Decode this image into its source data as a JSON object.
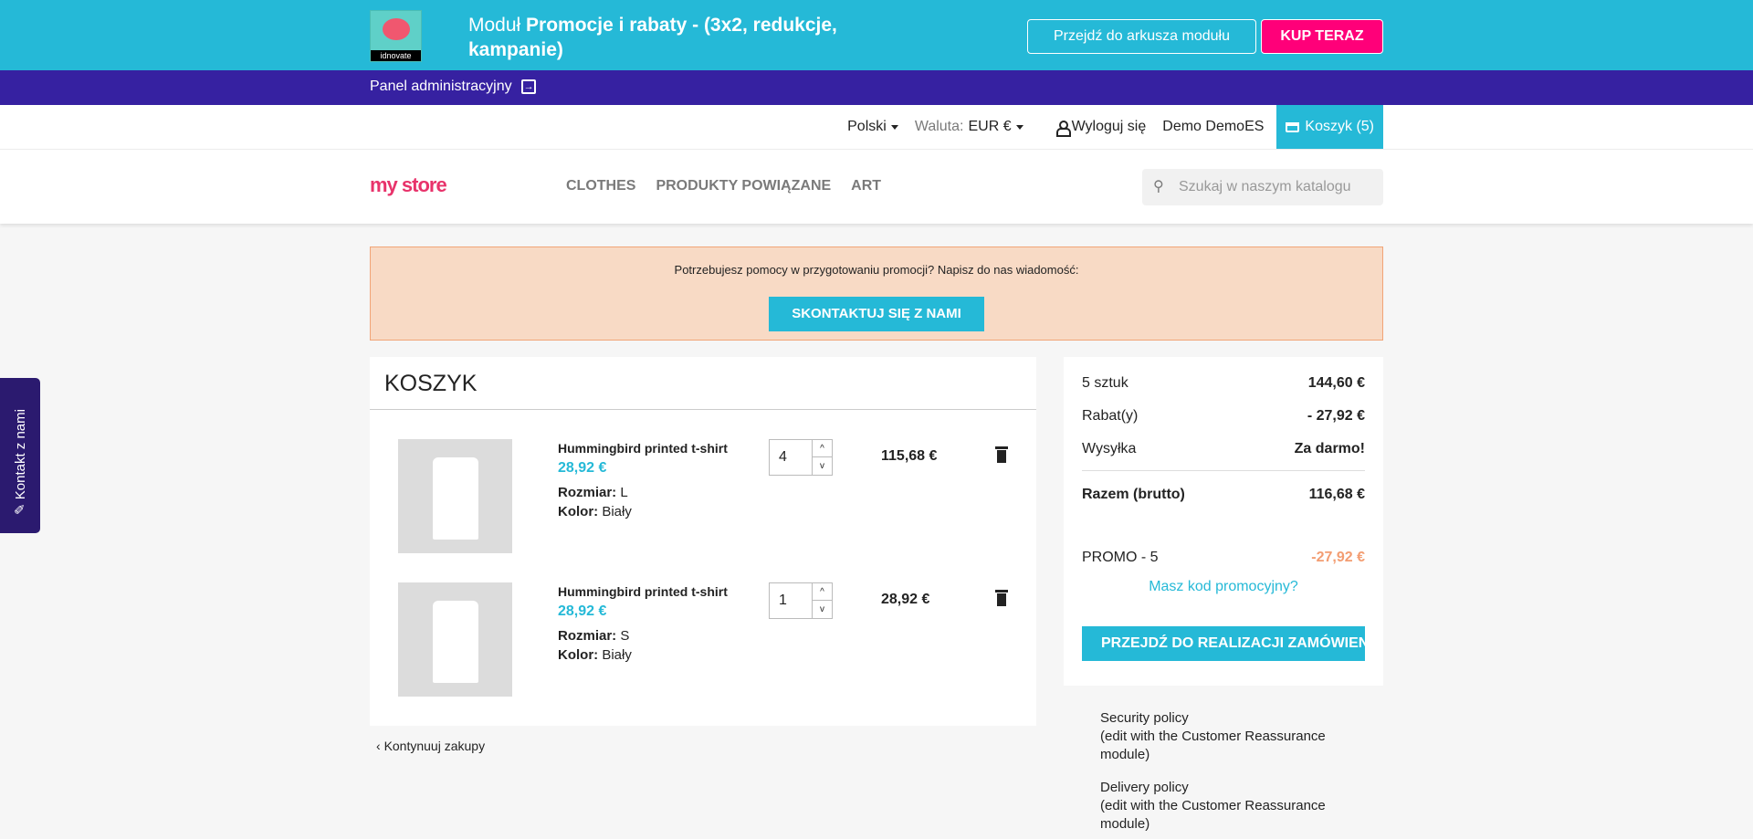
{
  "module_bar": {
    "logo_label": "idnovate",
    "title_prefix": "Moduł",
    "title_bold": "Promocje i rabaty - (3x2, redukcje, kampanie)",
    "sheet_button": "Przejdź do arkusza modułu",
    "buy_button": "KUP TERAZ"
  },
  "admin_bar": {
    "label": "Panel administracyjny"
  },
  "user_bar": {
    "language": "Polski",
    "currency_label": "Waluta:",
    "currency_value": "EUR €",
    "logout": "Wyloguj się",
    "user": "Demo DemoES",
    "cart": "Koszyk (5)"
  },
  "header": {
    "logo": "my store",
    "nav": [
      "CLOTHES",
      "PRODUKTY POWIĄZANE",
      "ART"
    ],
    "search_placeholder": "Szukaj w naszym katalogu"
  },
  "promo_help": {
    "text": "Potrzebujesz pomocy w przygotowaniu promocji? Napisz do nas wiadomość:",
    "button": "SKONTAKTUJ SIĘ Z NAMI"
  },
  "cart": {
    "title": "KOSZYK",
    "items": [
      {
        "name": "Hummingbird printed t-shirt",
        "price": "28,92 €",
        "size_label": "Rozmiar:",
        "size": "L",
        "color_label": "Kolor:",
        "color": "Biały",
        "qty": "4",
        "total": "115,68 €"
      },
      {
        "name": "Hummingbird printed t-shirt",
        "price": "28,92 €",
        "size_label": "Rozmiar:",
        "size": "S",
        "color_label": "Kolor:",
        "color": "Biały",
        "qty": "1",
        "total": "28,92 €"
      }
    ],
    "continue": "Kontynuuj zakupy"
  },
  "summary": {
    "rows": [
      {
        "label": "5 sztuk",
        "value": "144,60 €"
      },
      {
        "label": "Rabat(y)",
        "value": "- 27,92 €"
      },
      {
        "label": "Wysyłka",
        "value": "Za darmo!"
      }
    ],
    "total_label": "Razem (brutto)",
    "total_value": "116,68 €",
    "promo_label": "PROMO - 5",
    "promo_value": "-27,92 €",
    "promo_link": "Masz kod promocyjny?",
    "checkout": "PRZEJDŹ DO REALIZACJI ZAMÓWIENIA"
  },
  "reassurance": [
    {
      "title": "Security policy",
      "sub": "(edit with the Customer Reassurance module)"
    },
    {
      "title": "Delivery policy",
      "sub": "(edit with the Customer Reassurance module)"
    }
  ],
  "side_tab": "Kontakt z nami",
  "colors": {
    "primary": "#25b9d7",
    "purple": "#3621a1",
    "buy": "#ff0079",
    "promo_value": "#f39d72"
  }
}
